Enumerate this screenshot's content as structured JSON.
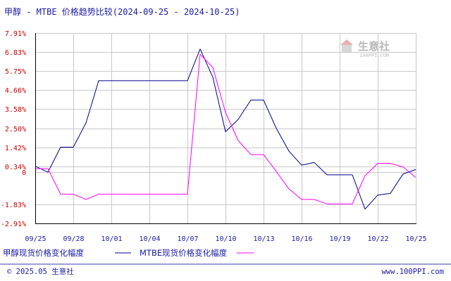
{
  "title": "甲醇 - MTBE 价格趋势比较(2024-09-25 - 2024-10-25)",
  "watermark": {
    "name": "生意社",
    "url": "100PPI.COM"
  },
  "footer": {
    "copyright": "© 2025.05 生意社",
    "website": "www.100PPI.com"
  },
  "colors": {
    "methanol": "#00008b",
    "mtbe": "#ff00ff",
    "grid": "#c8c8c8",
    "axis": "#000000",
    "tick_label_y": "#cc0000",
    "text": "#1a1aa6",
    "footer_rule": "#3a3ab0"
  },
  "chart_data": {
    "type": "line",
    "title": "甲醇 - MTBE 价格趋势比较(2024-09-25 - 2024-10-25)",
    "x_ticks": [
      "09/25",
      "09/28",
      "10/01",
      "10/04",
      "10/07",
      "10/10",
      "10/13",
      "10/16",
      "10/19",
      "10/22",
      "10/25"
    ],
    "y_ticks": [
      "7.91%",
      "6.83%",
      "5.75%",
      "4.66%",
      "3.58%",
      "2.50%",
      "1.42%",
      "0.34%",
      "0",
      "-1.83%",
      "-2.91%"
    ],
    "y_tick_values": [
      7.91,
      6.83,
      5.75,
      4.66,
      3.58,
      2.5,
      1.42,
      0.34,
      0,
      -1.83,
      -2.91
    ],
    "ylim": [
      -2.91,
      7.91
    ],
    "grid": true,
    "legend_position": "bottom-left",
    "x": [
      "09/25",
      "09/26",
      "09/27",
      "09/28",
      "09/29",
      "09/30",
      "10/01",
      "10/02",
      "10/03",
      "10/04",
      "10/05",
      "10/06",
      "10/07",
      "10/08",
      "10/09",
      "10/10",
      "10/11",
      "10/12",
      "10/13",
      "10/14",
      "10/15",
      "10/16",
      "10/17",
      "10/18",
      "10/19",
      "10/20",
      "10/21",
      "10/22",
      "10/23",
      "10/24",
      "10/25"
    ],
    "series": [
      {
        "name": "甲醇现货价格变化幅度",
        "color": "#00008b",
        "values": [
          0.34,
          0.0,
          1.42,
          1.42,
          2.8,
          5.2,
          5.2,
          5.2,
          5.2,
          5.2,
          5.2,
          5.2,
          5.2,
          7.0,
          5.4,
          2.3,
          3.0,
          4.1,
          4.1,
          2.5,
          1.2,
          0.4,
          0.55,
          -0.15,
          -0.15,
          -0.15,
          -2.1,
          -1.3,
          -1.2,
          -0.1,
          0.15
        ]
      },
      {
        "name": "MTBE现货价格变化幅度",
        "color": "#ff00ff",
        "values": [
          0.2,
          0.2,
          -1.25,
          -1.25,
          -1.55,
          -1.25,
          -1.25,
          -1.25,
          -1.25,
          -1.25,
          -1.25,
          -1.25,
          -1.25,
          6.7,
          5.95,
          3.4,
          1.8,
          1.0,
          1.0,
          0.05,
          -0.95,
          -1.55,
          -1.55,
          -1.8,
          -1.8,
          -1.8,
          -0.2,
          0.5,
          0.5,
          0.3,
          -0.3
        ]
      }
    ]
  }
}
